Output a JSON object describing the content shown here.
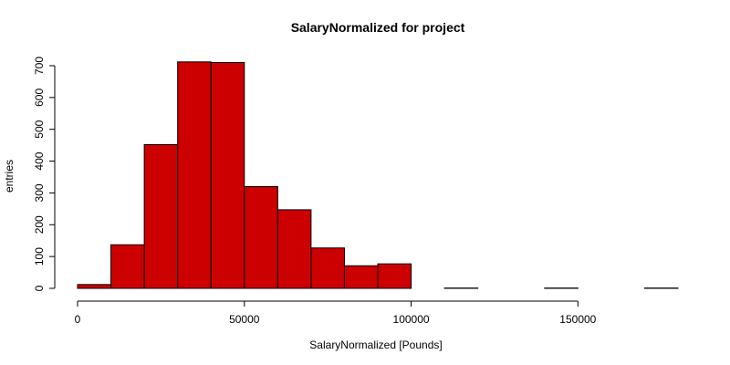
{
  "chart_data": {
    "type": "bar",
    "title": "SalaryNormalized for project",
    "xlabel": "SalaryNormalized [Pounds]",
    "ylabel": "entries",
    "bar_color": "#CC0000",
    "edge_color": "#000000",
    "xlim": [
      0,
      180000
    ],
    "ylim": [
      0,
      700
    ],
    "x_ticks": [
      0,
      50000,
      100000,
      150000
    ],
    "y_ticks": [
      0,
      100,
      200,
      300,
      400,
      500,
      600,
      700
    ],
    "grid": false,
    "bins": [
      {
        "x0": 0,
        "x1": 10000,
        "value": 12
      },
      {
        "x0": 10000,
        "x1": 20000,
        "value": 137
      },
      {
        "x0": 20000,
        "x1": 30000,
        "value": 452
      },
      {
        "x0": 30000,
        "x1": 40000,
        "value": 712
      },
      {
        "x0": 40000,
        "x1": 50000,
        "value": 710
      },
      {
        "x0": 50000,
        "x1": 60000,
        "value": 320
      },
      {
        "x0": 60000,
        "x1": 70000,
        "value": 247
      },
      {
        "x0": 70000,
        "x1": 80000,
        "value": 127
      },
      {
        "x0": 80000,
        "x1": 90000,
        "value": 71
      },
      {
        "x0": 90000,
        "x1": 100000,
        "value": 77
      },
      {
        "x0": 100000,
        "x1": 110000,
        "value": 0
      },
      {
        "x0": 110000,
        "x1": 120000,
        "value": 1
      },
      {
        "x0": 120000,
        "x1": 130000,
        "value": 0
      },
      {
        "x0": 130000,
        "x1": 140000,
        "value": 0
      },
      {
        "x0": 140000,
        "x1": 150000,
        "value": 1
      },
      {
        "x0": 150000,
        "x1": 160000,
        "value": 0
      },
      {
        "x0": 160000,
        "x1": 170000,
        "value": 0
      },
      {
        "x0": 170000,
        "x1": 180000,
        "value": 1
      }
    ]
  }
}
